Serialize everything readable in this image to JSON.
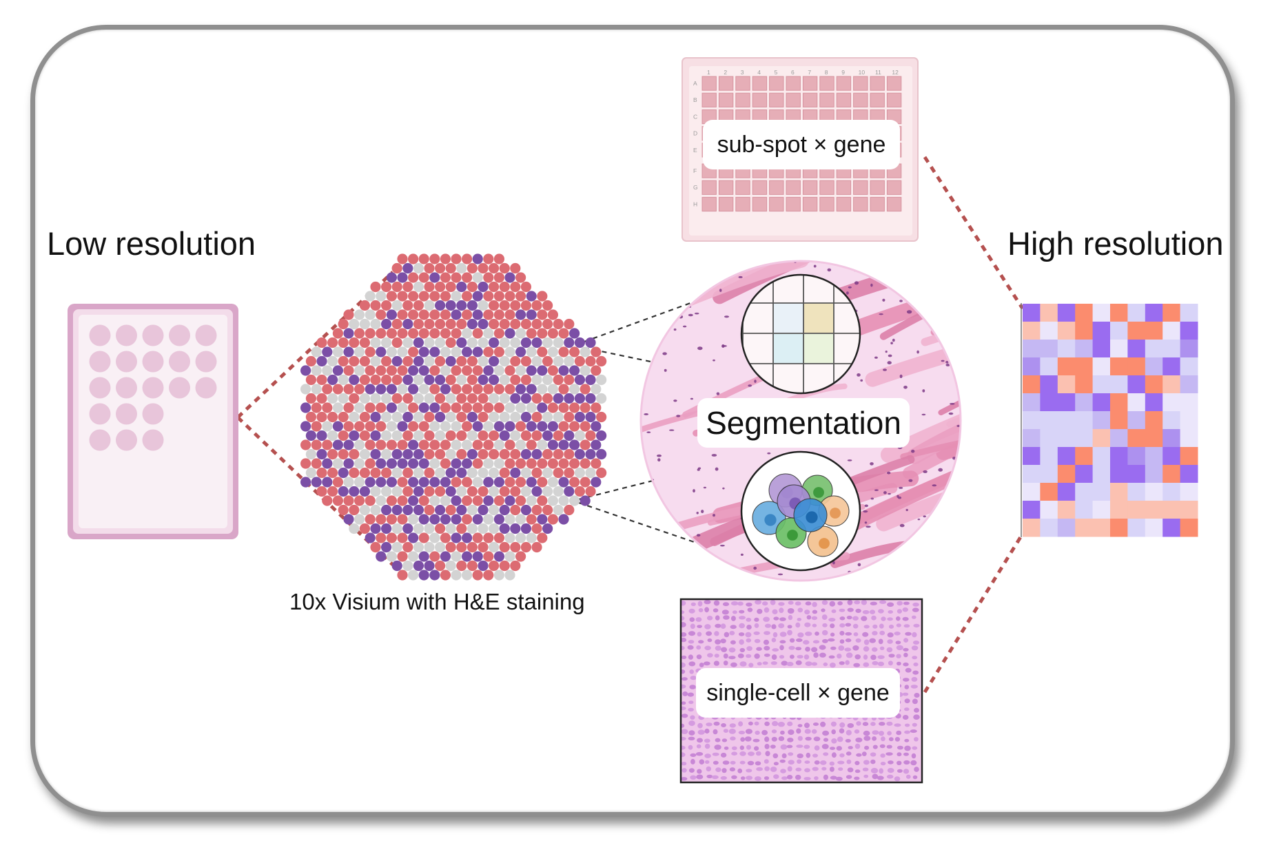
{
  "labels": {
    "low_resolution": "Low resolution",
    "high_resolution": "High resolution",
    "visium_caption": "10x Visium with H&E staining",
    "segmentation": "Segmentation",
    "subspot_gene": "sub-spot × gene",
    "singlecell_gene": "single-cell × gene"
  },
  "plate": {
    "columns": [
      "1",
      "2",
      "3",
      "4",
      "5",
      "6",
      "7",
      "8",
      "9",
      "10",
      "11",
      "12"
    ],
    "rows": [
      "A",
      "B",
      "C",
      "D",
      "E",
      "F",
      "G",
      "H"
    ]
  },
  "colors": {
    "frame_border": "#8f8f8f",
    "spot_red": "#dc6b72",
    "spot_purple": "#7b4fa6",
    "spot_gray": "#d3d3d3",
    "dashed_line": "#b5504f",
    "tissue_pink": "#e58fb4",
    "heatmap_orange": "#fb8c6e",
    "heatmap_purple": "#9a6cf0",
    "heatmap_lavender": "#d8d4f8"
  }
}
